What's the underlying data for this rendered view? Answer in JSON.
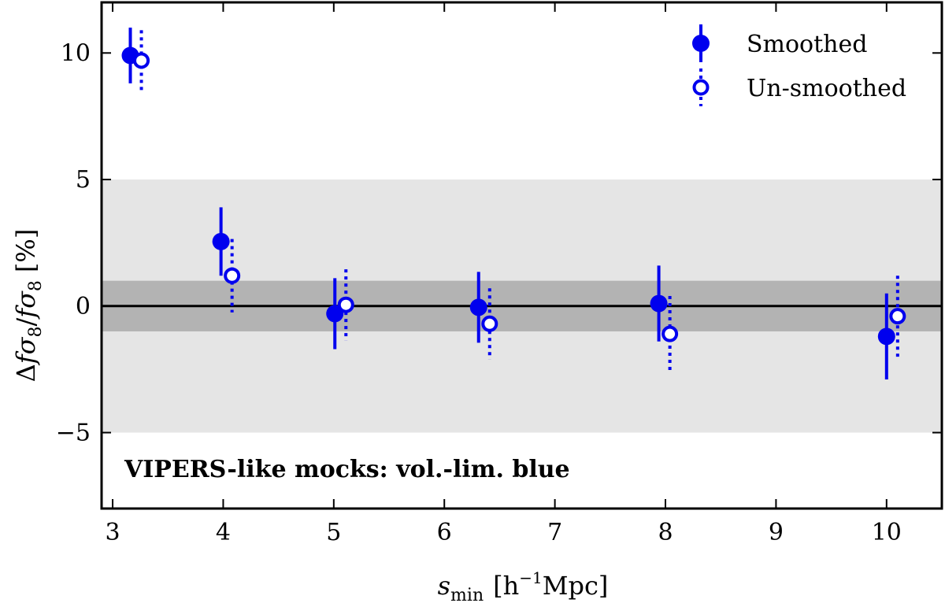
{
  "chart_data": {
    "type": "scatter",
    "xlabel": "s_min [h⁻¹Mpc]",
    "ylabel": "Δfσ₈/fσ₈ [%]",
    "xlim": [
      2.9,
      10.5
    ],
    "ylim": [
      -8,
      12
    ],
    "x_ticks": [
      3,
      4,
      5,
      6,
      7,
      8,
      9,
      10
    ],
    "y_ticks": [
      -5,
      0,
      5,
      10
    ],
    "x_tick_labels": [
      "3",
      "4",
      "5",
      "6",
      "7",
      "8",
      "9",
      "10"
    ],
    "y_tick_labels": [
      "−5",
      "0",
      "5",
      "10"
    ],
    "bands": [
      {
        "ymin": -5,
        "ymax": 5,
        "color": "#e5e5e5"
      },
      {
        "ymin": -1,
        "ymax": 1,
        "color": "#b3b3b3"
      }
    ],
    "reference_line": 0,
    "annotation": "VIPERS-like mocks: vol.-lim. blue",
    "legend_position": "top-right",
    "series": [
      {
        "name": "Smoothed",
        "marker": "filled-circle",
        "errorbar_style": "solid",
        "color": "#0000ee",
        "x": [
          3.16,
          3.98,
          5.01,
          6.31,
          7.94,
          10.0
        ],
        "y": [
          9.9,
          2.55,
          -0.3,
          -0.05,
          0.1,
          -1.2
        ],
        "yerr": [
          1.1,
          1.35,
          1.4,
          1.4,
          1.5,
          1.7
        ]
      },
      {
        "name": "Un-smoothed",
        "marker": "open-circle",
        "errorbar_style": "dotted",
        "color": "#0000ee",
        "x": [
          3.26,
          4.08,
          5.11,
          6.41,
          8.04,
          10.1
        ],
        "y": [
          9.7,
          1.2,
          0.05,
          -0.7,
          -1.1,
          -0.4
        ],
        "yerr": [
          1.2,
          1.45,
          1.4,
          1.4,
          1.5,
          1.6
        ]
      }
    ]
  }
}
